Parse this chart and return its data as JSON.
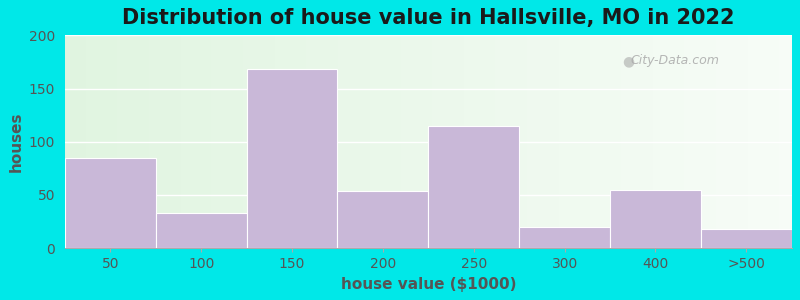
{
  "title": "Distribution of house value in Hallsville, MO in 2022",
  "xlabel": "house value ($1000)",
  "ylabel": "houses",
  "categories": [
    "50",
    "100",
    "150",
    "200",
    "250",
    "300",
    "400",
    ">500"
  ],
  "values": [
    85,
    33,
    168,
    54,
    115,
    20,
    55,
    18
  ],
  "bar_color": "#c9b8d8",
  "bar_edgecolor": "#ffffff",
  "ylim": [
    0,
    200
  ],
  "yticks": [
    0,
    50,
    100,
    150,
    200
  ],
  "background_outer": "#00e8e8",
  "grid_color": "#ffffff",
  "title_fontsize": 15,
  "axis_fontsize": 11,
  "tick_fontsize": 10,
  "watermark_text": "City-Data.com",
  "text_color": "#555555"
}
